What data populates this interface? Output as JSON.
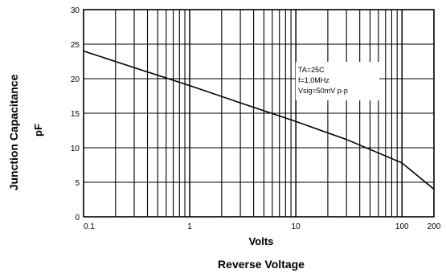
{
  "chart_data": {
    "type": "line",
    "title": "",
    "xlabel": "Volts",
    "xlabel2": "Reverse Voltage",
    "ylabel": "Junction Capacitance",
    "ylabel_unit": "pF",
    "x_scale": "log",
    "xlim": [
      0.1,
      200
    ],
    "ylim": [
      0,
      30
    ],
    "grid": true,
    "x_tick_labels": [
      {
        "value": 0.1,
        "label": "0.1"
      },
      {
        "value": 1,
        "label": "1"
      },
      {
        "value": 10,
        "label": "10"
      },
      {
        "value": 100,
        "label": "100"
      },
      {
        "value": 200,
        "label": "200"
      }
    ],
    "y_tick_labels": [
      {
        "value": 0,
        "label": "0"
      },
      {
        "value": 5,
        "label": "5"
      },
      {
        "value": 10,
        "label": "10"
      },
      {
        "value": 15,
        "label": "15"
      },
      {
        "value": 20,
        "label": "20"
      },
      {
        "value": 25,
        "label": "25"
      },
      {
        "value": 30,
        "label": "30"
      }
    ],
    "annotation_lines": [
      "TA=25C",
      "f=1.0MHz",
      "Vsig=50mV p-p"
    ],
    "series": [
      {
        "x": [
          0.1,
          0.3,
          1,
          3,
          10,
          30,
          100,
          200
        ],
        "y": [
          24,
          21.6,
          19,
          16.5,
          13.8,
          11.2,
          7.8,
          4
        ]
      }
    ]
  }
}
